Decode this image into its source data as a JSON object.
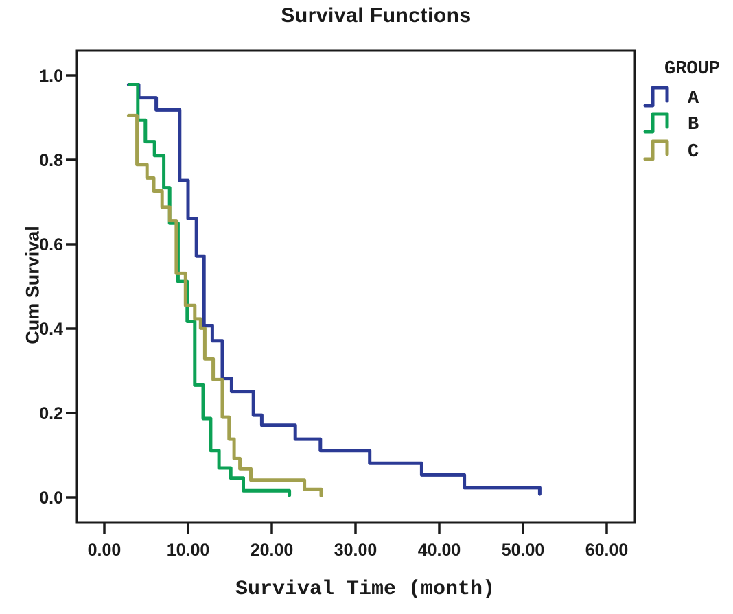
{
  "figure": {
    "title": "Survival Functions",
    "background_color": "#ffffff",
    "text_color": "#1a1a1a"
  },
  "chart_data": {
    "type": "line",
    "subtype": "kaplan-meier-step",
    "title": "Survival Functions",
    "xlabel": "Survival Time (month)",
    "ylabel": "Cum Survival",
    "xlim": [
      -3.3,
      63.4
    ],
    "ylim": [
      -0.06,
      1.06
    ],
    "grid": false,
    "x_ticks": [
      "0.00",
      "10.00",
      "20.00",
      "30.00",
      "40.00",
      "50.00",
      "60.00"
    ],
    "y_ticks": [
      "0.0",
      "0.2",
      "0.4",
      "0.6",
      "0.8",
      "1.0"
    ],
    "legend": {
      "title": "GROUP",
      "position": "outside-top-right",
      "items": [
        {
          "label": "A",
          "color": "#2b3a95"
        },
        {
          "label": "B",
          "color": "#0ca155"
        },
        {
          "label": "C",
          "color": "#a2a04e"
        }
      ]
    },
    "series": [
      {
        "name": "A",
        "color": "#2b3a95",
        "start": [
          2.9,
          0.978
        ],
        "steps": [
          [
            4.1,
            0.947
          ],
          [
            6.2,
            0.918
          ],
          [
            9.0,
            0.751
          ],
          [
            10.0,
            0.661
          ],
          [
            11.0,
            0.572
          ],
          [
            11.9,
            0.407
          ],
          [
            12.9,
            0.371
          ],
          [
            14.1,
            0.282
          ],
          [
            15.2,
            0.251
          ],
          [
            17.8,
            0.195
          ],
          [
            18.8,
            0.171
          ],
          [
            22.8,
            0.138
          ],
          [
            25.8,
            0.111
          ],
          [
            31.7,
            0.081
          ],
          [
            37.9,
            0.053
          ],
          [
            43.0,
            0.023
          ],
          [
            52.0,
            0.008
          ]
        ]
      },
      {
        "name": "B",
        "color": "#0ca155",
        "start": [
          3.0,
          0.978
        ],
        "steps": [
          [
            4.0,
            0.894
          ],
          [
            4.9,
            0.843
          ],
          [
            6.0,
            0.81
          ],
          [
            7.1,
            0.734
          ],
          [
            7.8,
            0.65
          ],
          [
            8.8,
            0.512
          ],
          [
            9.9,
            0.417
          ],
          [
            10.8,
            0.266
          ],
          [
            11.8,
            0.187
          ],
          [
            12.7,
            0.111
          ],
          [
            13.7,
            0.07
          ],
          [
            15.1,
            0.046
          ],
          [
            16.6,
            0.016
          ],
          [
            22.1,
            0.005
          ]
        ]
      },
      {
        "name": "C",
        "color": "#a2a04e",
        "start": [
          2.9,
          0.905
        ],
        "steps": [
          [
            3.9,
            0.789
          ],
          [
            5.1,
            0.757
          ],
          [
            5.9,
            0.726
          ],
          [
            6.9,
            0.688
          ],
          [
            7.8,
            0.656
          ],
          [
            8.6,
            0.531
          ],
          [
            9.7,
            0.455
          ],
          [
            10.8,
            0.423
          ],
          [
            11.5,
            0.401
          ],
          [
            12.0,
            0.328
          ],
          [
            13.0,
            0.279
          ],
          [
            14.1,
            0.19
          ],
          [
            14.9,
            0.138
          ],
          [
            15.5,
            0.092
          ],
          [
            16.2,
            0.068
          ],
          [
            17.5,
            0.041
          ],
          [
            23.9,
            0.019
          ],
          [
            25.9,
            0.004
          ]
        ]
      }
    ]
  }
}
